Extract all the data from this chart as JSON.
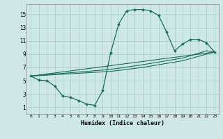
{
  "xlabel": "Humidex (Indice chaleur)",
  "ylabel": "",
  "xlim": [
    -0.5,
    23.5
  ],
  "ylim": [
    0,
    16.5
  ],
  "xticks": [
    0,
    1,
    2,
    3,
    4,
    5,
    6,
    7,
    8,
    9,
    10,
    11,
    12,
    13,
    14,
    15,
    16,
    17,
    18,
    19,
    20,
    21,
    22,
    23
  ],
  "yticks": [
    1,
    3,
    5,
    7,
    9,
    11,
    13,
    15
  ],
  "bg_color": "#cee9e5",
  "grid_color": "#aacfcb",
  "line_color": "#1a6b5a",
  "curve_main": {
    "x": [
      0,
      1,
      2,
      3,
      4,
      5,
      6,
      7,
      8,
      9,
      10,
      11,
      12,
      13,
      14,
      15,
      16,
      17,
      18,
      19,
      20,
      21,
      22,
      23
    ],
    "y": [
      5.7,
      5.1,
      5.0,
      4.2,
      2.7,
      2.5,
      2.0,
      1.5,
      1.3,
      3.5,
      9.2,
      13.5,
      15.5,
      15.7,
      15.7,
      15.5,
      14.8,
      12.3,
      9.5,
      10.5,
      11.2,
      11.2,
      10.7,
      9.3
    ]
  },
  "curve_line1": {
    "x": [
      0,
      23
    ],
    "y": [
      5.7,
      9.3
    ]
  },
  "curve_line2": {
    "x": [
      0,
      10,
      14,
      19,
      22,
      23
    ],
    "y": [
      5.7,
      6.4,
      7.0,
      8.0,
      9.0,
      9.3
    ]
  },
  "curve_line3": {
    "x": [
      0,
      10,
      14,
      19,
      22,
      23
    ],
    "y": [
      5.7,
      6.7,
      7.4,
      8.4,
      9.5,
      9.3
    ]
  }
}
